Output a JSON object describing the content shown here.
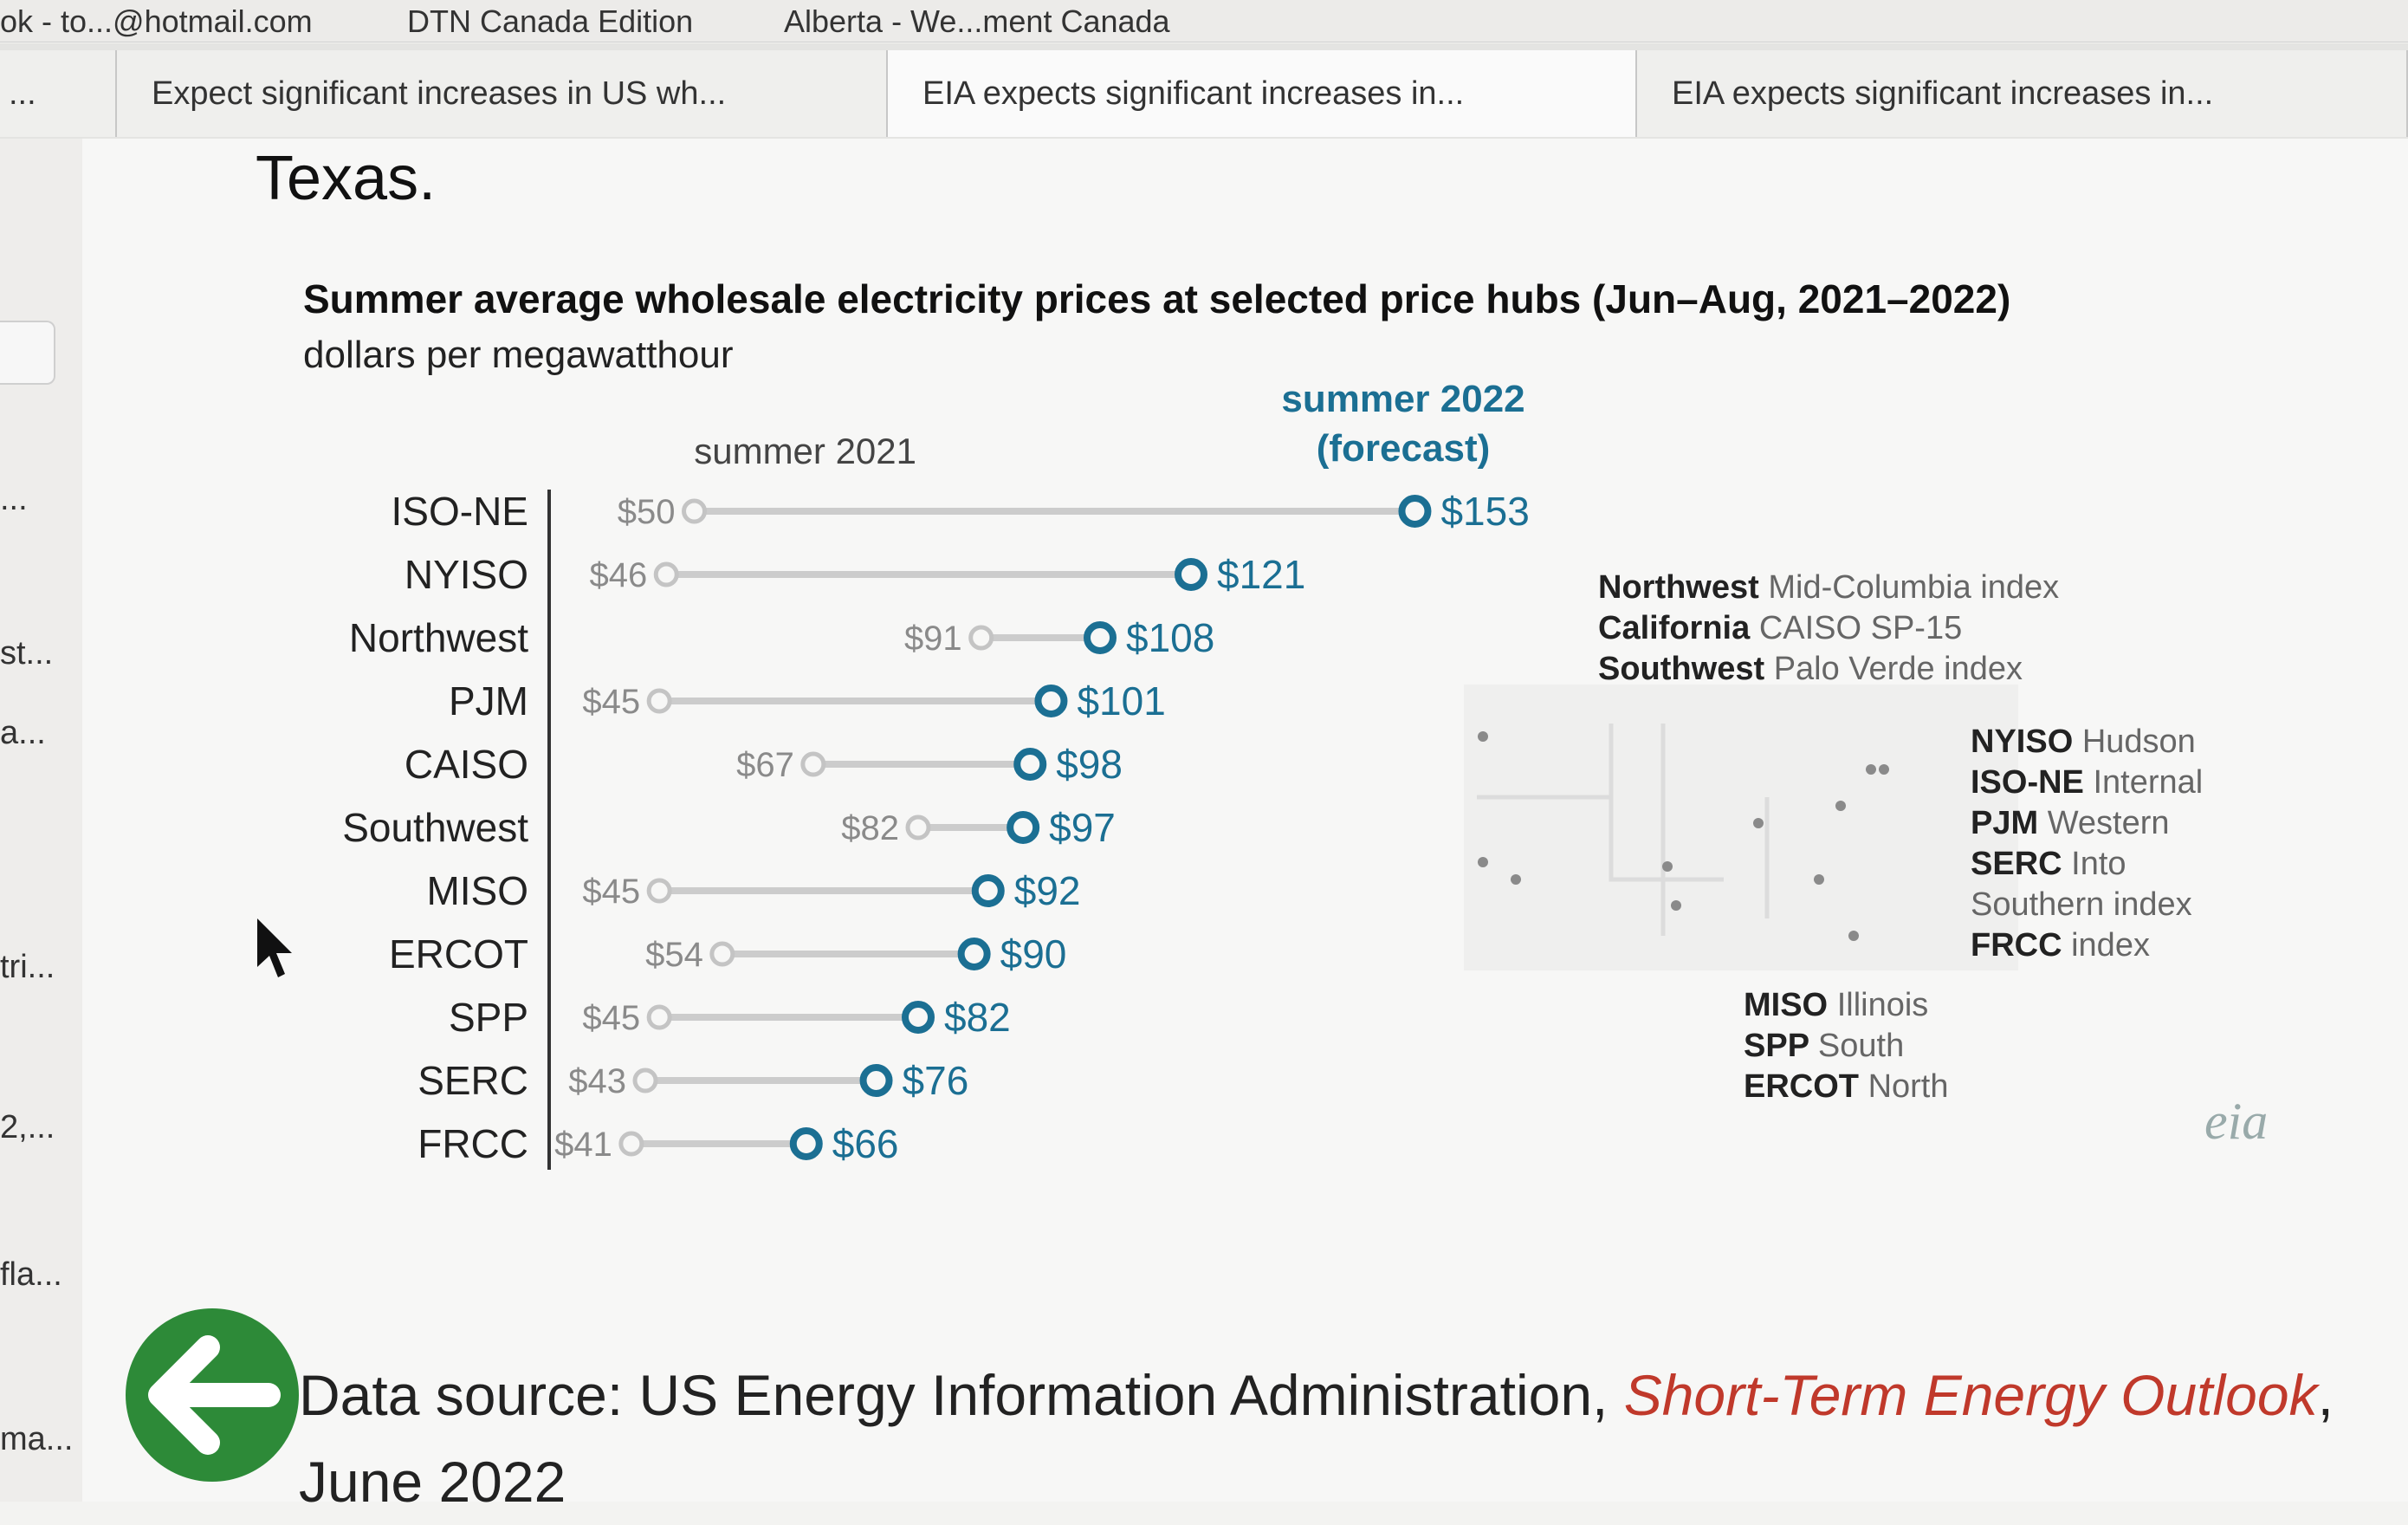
{
  "browser": {
    "bookmarks": [
      "ok - to...@hotmail.com",
      "DTN Canada Edition",
      "Alberta - We...ment Canada"
    ],
    "tabs": [
      {
        "label": "..."
      },
      {
        "label": "Expect significant increases in US wh..."
      },
      {
        "label": "EIA expects significant increases in..."
      },
      {
        "label": "EIA expects significant increases in..."
      }
    ],
    "left_rail": [
      "...",
      "st...",
      "a...",
      "tri...",
      "2,...",
      "fla...",
      "ma..."
    ]
  },
  "page": {
    "heading": "Texas.",
    "source_prefix": "Data source: US Energy Information Administration, ",
    "source_link": "Short-Term Energy Outlook",
    "source_suffix": ", June 2022",
    "logo_text": "eia"
  },
  "colors": {
    "accent": "#1b6f93",
    "line_2021": "#cccccc",
    "back_button": "#2d8a38",
    "link": "#c0392b"
  },
  "chart_data": {
    "type": "dumbbell",
    "title": "Summer average wholesale electricity prices at selected price hubs (Jun–Aug, 2021–2022)",
    "subtitle": "dollars per megawatthour",
    "series_labels": {
      "start": "summer 2021",
      "end_line1": "summer 2022",
      "end_line2": "(forecast)"
    },
    "categories": [
      "ISO-NE",
      "NYISO",
      "Northwest",
      "PJM",
      "CAISO",
      "Southwest",
      "MISO",
      "ERCOT",
      "SPP",
      "SERC",
      "FRCC"
    ],
    "series": [
      {
        "name": "summer 2021",
        "values": [
          50,
          46,
          91,
          45,
          67,
          82,
          45,
          54,
          45,
          43,
          41
        ]
      },
      {
        "name": "summer 2022 (forecast)",
        "values": [
          153,
          121,
          108,
          101,
          98,
          97,
          92,
          90,
          82,
          76,
          66
        ]
      }
    ],
    "value_prefix": "$",
    "xlim": [
      30,
      160
    ],
    "map_legend": {
      "west": [
        {
          "hub": "Northwest",
          "index": "Mid-Columbia index"
        },
        {
          "hub": "California",
          "index": "CAISO SP-15"
        },
        {
          "hub": "Southwest",
          "index": "Palo Verde index"
        }
      ],
      "east": [
        {
          "hub": "NYISO",
          "index": "Hudson"
        },
        {
          "hub": "ISO-NE",
          "index": "Internal"
        },
        {
          "hub": "PJM",
          "index": "Western"
        },
        {
          "hub": "SERC",
          "index": "Into"
        },
        {
          "hub": "",
          "index": "Southern index"
        },
        {
          "hub": "FRCC",
          "index": "index"
        }
      ],
      "central": [
        {
          "hub": "MISO",
          "index": "Illinois"
        },
        {
          "hub": "SPP",
          "index": "South"
        },
        {
          "hub": "ERCOT",
          "index": "North"
        }
      ]
    }
  }
}
